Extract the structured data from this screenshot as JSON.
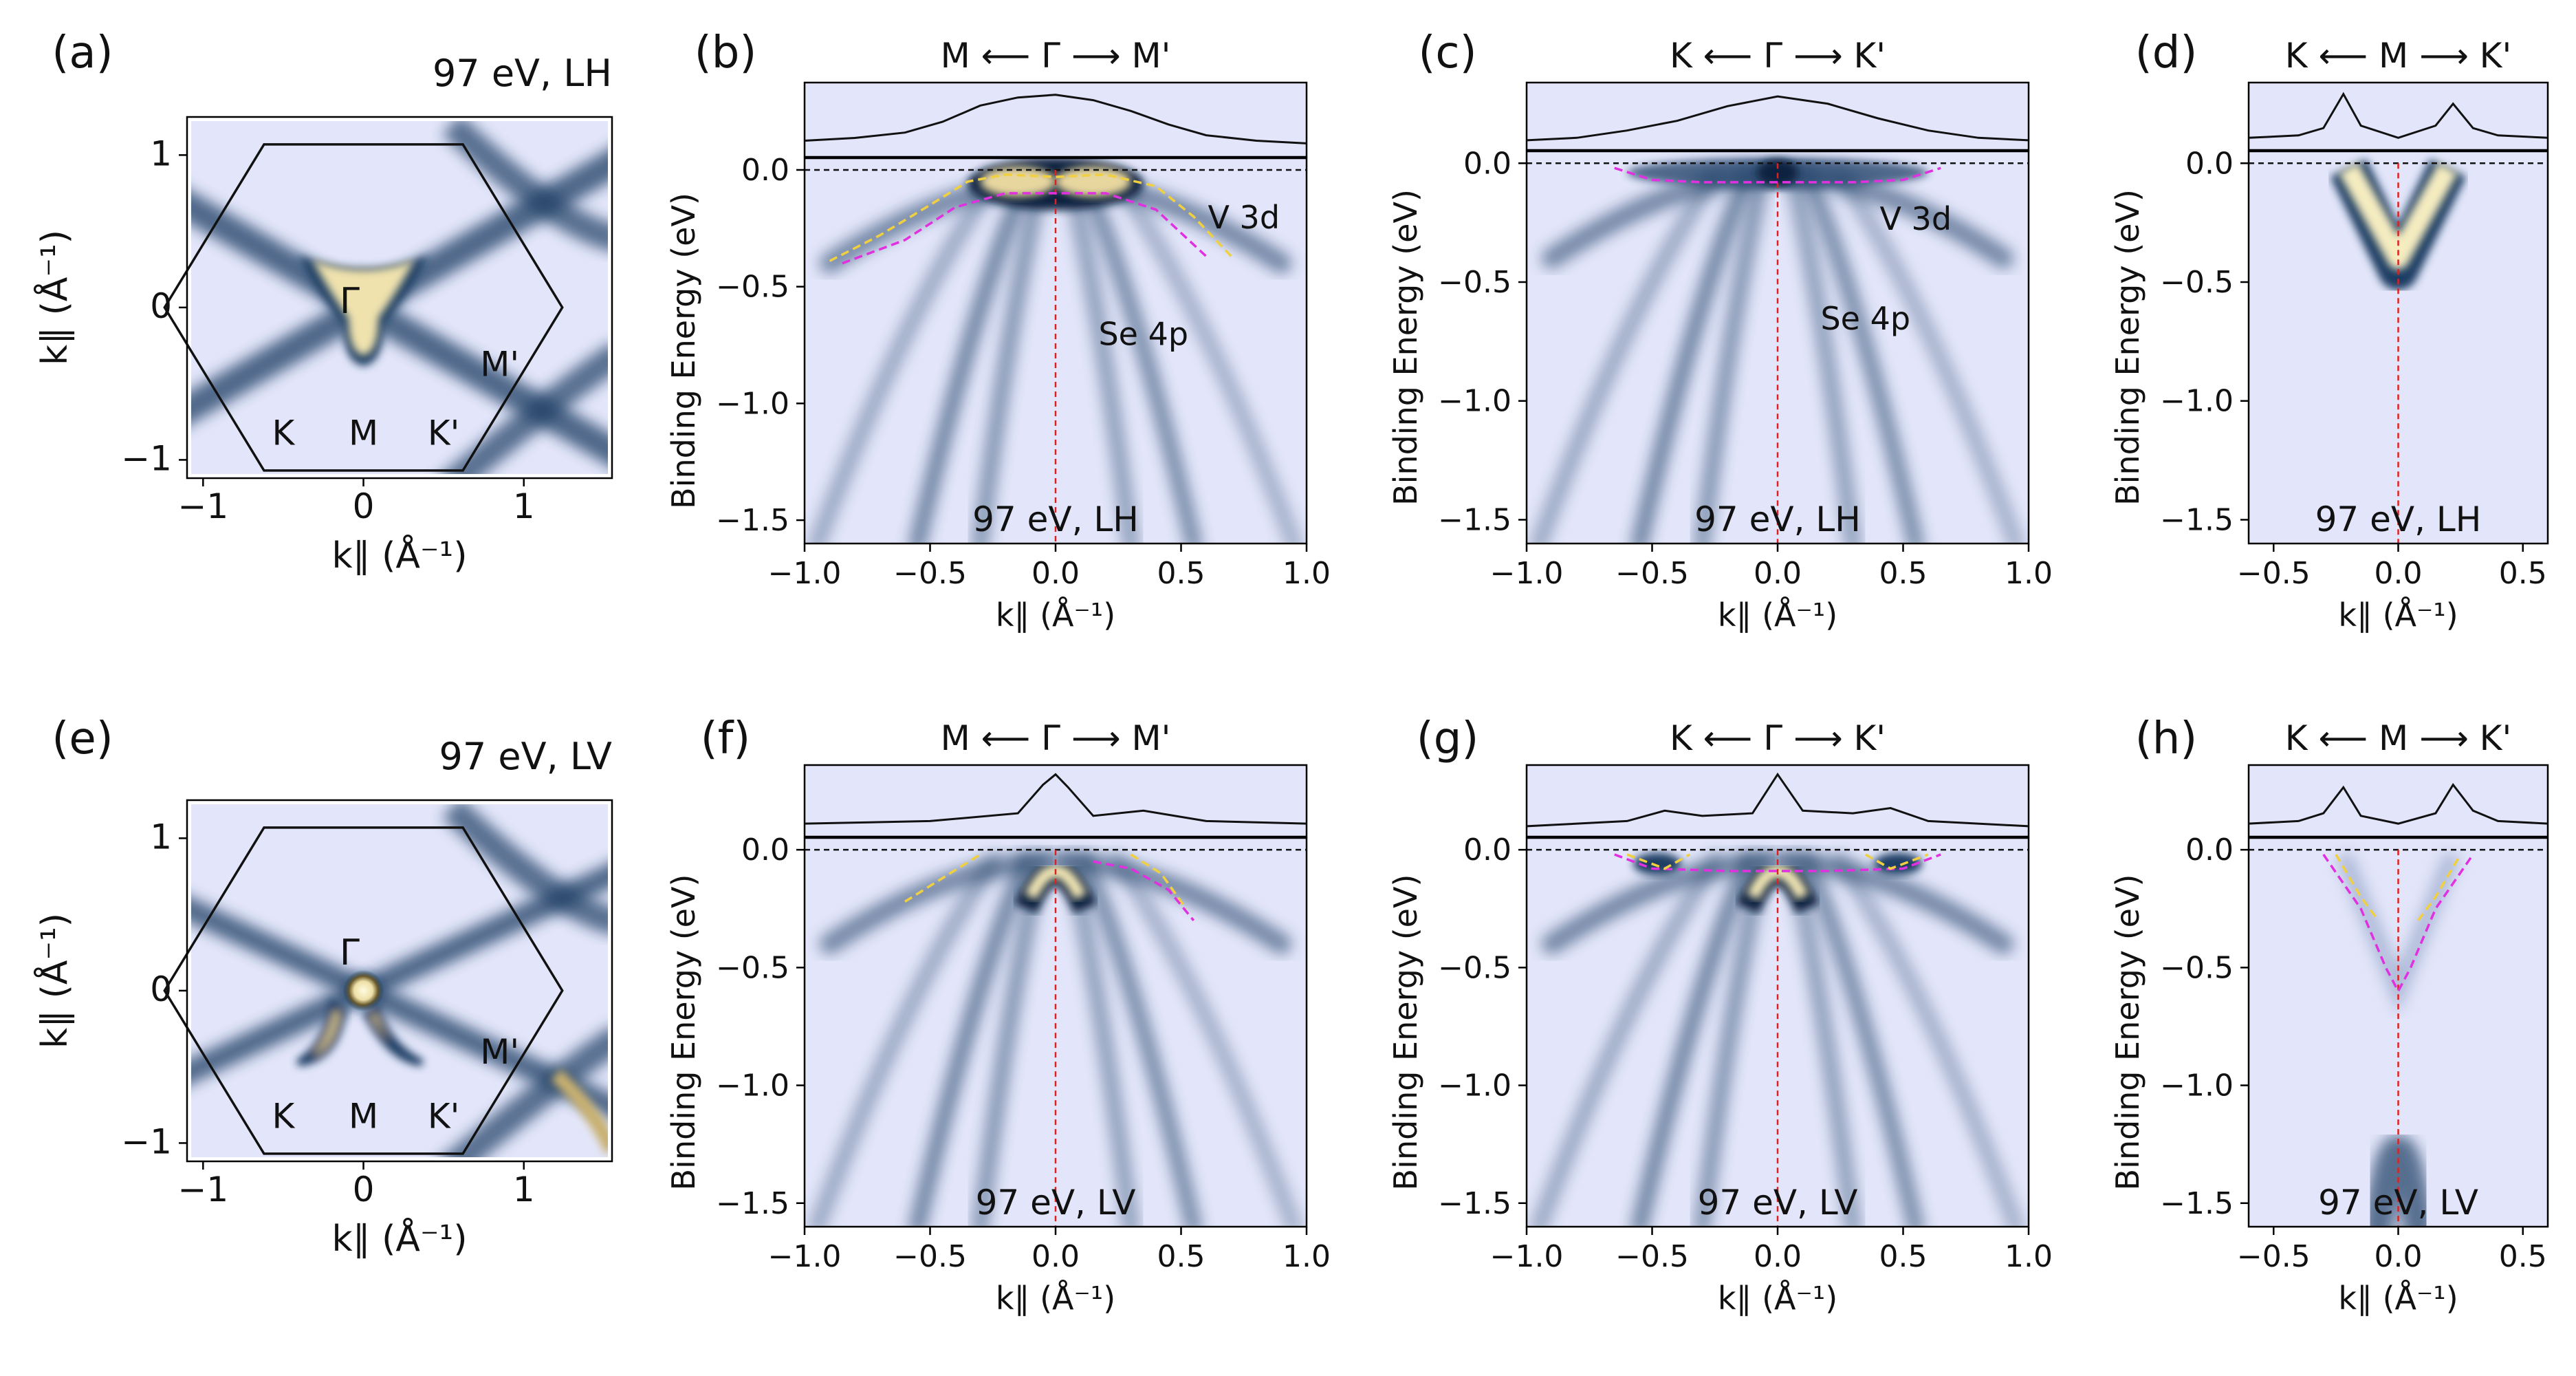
{
  "figure": {
    "colors": {
      "background": "#e3e6fa",
      "mapHigh": "#f6efc6",
      "mapMid": "#1c3d63",
      "guide": "#e02020",
      "dashYellow": "#f0d040",
      "dashMagenta": "#e030e0",
      "edcLine": "#111111"
    }
  },
  "chart_data": [
    {
      "panel": "(a)",
      "type": "heatmap",
      "title": "97 eV, LH",
      "xlabel": "k∥ (Å⁻¹)",
      "ylabel": "k∥ (Å⁻¹)",
      "xlim": [
        -1.1,
        1.55
      ],
      "ylim": [
        -1.12,
        1.25
      ],
      "xticks": [
        -1,
        0,
        1
      ],
      "yticks": [
        -1,
        0,
        1
      ],
      "xticklabels": [
        "−1",
        "0",
        "1"
      ],
      "yticklabels": [
        "−1",
        "0",
        "1"
      ],
      "points": [
        "Γ",
        "K",
        "M",
        "K'",
        "M'"
      ],
      "content": "Fermi surface map: bright trefoil pocket at Γ, dark spokes along Γ–M directions, hexagonal Brillouin zone"
    },
    {
      "panel": "(b)",
      "type": "heatmap",
      "cut": "M ⟵ Γ ⟶ M'",
      "xlabel": "k∥ (Å⁻¹)",
      "ylabel": "Binding Energy (eV)",
      "xlim": [
        -1.0,
        1.0
      ],
      "ylim": [
        -1.6,
        0.05
      ],
      "xticks": [
        -1.0,
        -0.5,
        0.0,
        0.5,
        1.0
      ],
      "xticklabels": [
        "−1.0",
        "−0.5",
        "0.0",
        "0.5",
        "1.0"
      ],
      "yticks": [
        0.0,
        -0.5,
        -1.0,
        -1.5
      ],
      "yticklabels": [
        "0.0",
        "−0.5",
        "−1.0",
        "−1.5"
      ],
      "annotations": [
        "V 3d",
        "Se 4p"
      ],
      "condition": "97 eV, LH",
      "edc": {
        "x": [
          -1.0,
          -0.8,
          -0.6,
          -0.45,
          -0.3,
          -0.15,
          0.0,
          0.15,
          0.3,
          0.45,
          0.6,
          0.8,
          1.0
        ],
        "y": [
          0.06,
          0.07,
          0.09,
          0.13,
          0.19,
          0.22,
          0.23,
          0.21,
          0.17,
          0.12,
          0.08,
          0.06,
          0.05
        ]
      },
      "dispersions": [
        {
          "name": "yellow",
          "x": [
            -0.9,
            -0.7,
            -0.5,
            -0.35,
            -0.2,
            0.0,
            0.2,
            0.4,
            0.55,
            0.7
          ],
          "y": [
            -0.39,
            -0.28,
            -0.15,
            -0.05,
            -0.02,
            -0.03,
            -0.02,
            -0.07,
            -0.2,
            -0.37
          ]
        },
        {
          "name": "magenta",
          "x": [
            -0.85,
            -0.6,
            -0.4,
            -0.2,
            0.0,
            0.2,
            0.4,
            0.6
          ],
          "y": [
            -0.4,
            -0.3,
            -0.16,
            -0.1,
            -0.1,
            -0.1,
            -0.17,
            -0.37
          ]
        }
      ]
    },
    {
      "panel": "(c)",
      "type": "heatmap",
      "cut": "K ⟵ Γ ⟶ K'",
      "xlabel": "k∥ (Å⁻¹)",
      "ylabel": "Binding Energy (eV)",
      "xlim": [
        -1.0,
        1.0
      ],
      "ylim": [
        -1.6,
        0.05
      ],
      "xticks": [
        -1.0,
        -0.5,
        0.0,
        0.5,
        1.0
      ],
      "xticklabels": [
        "−1.0",
        "−0.5",
        "0.0",
        "0.5",
        "1.0"
      ],
      "yticks": [
        0.0,
        -0.5,
        -1.0,
        -1.5
      ],
      "yticklabels": [
        "0.0",
        "−0.5",
        "−1.0",
        "−1.5"
      ],
      "annotations": [
        "V 3d",
        "Se 4p"
      ],
      "condition": "97 eV, LH",
      "edc": {
        "x": [
          -1.0,
          -0.8,
          -0.6,
          -0.4,
          -0.2,
          0.0,
          0.2,
          0.4,
          0.6,
          0.8,
          1.0
        ],
        "y": [
          0.04,
          0.05,
          0.08,
          0.12,
          0.18,
          0.22,
          0.19,
          0.13,
          0.08,
          0.05,
          0.04
        ]
      },
      "dispersions": [
        {
          "name": "magenta",
          "x": [
            -0.65,
            -0.5,
            -0.3,
            0.0,
            0.3,
            0.5,
            0.65
          ],
          "y": [
            -0.02,
            -0.07,
            -0.08,
            -0.08,
            -0.08,
            -0.07,
            -0.02
          ]
        }
      ]
    },
    {
      "panel": "(d)",
      "type": "heatmap",
      "cut": "K ⟵ M ⟶ K'",
      "xlabel": "k∥ (Å⁻¹)",
      "ylabel": "Binding Energy (eV)",
      "xlim": [
        -0.6,
        0.6
      ],
      "ylim": [
        -1.6,
        0.05
      ],
      "xticks": [
        -0.5,
        0.0,
        0.5
      ],
      "xticklabels": [
        "−0.5",
        "0.0",
        "0.5"
      ],
      "yticks": [
        0.0,
        -0.5,
        -1.0,
        -1.5
      ],
      "yticklabels": [
        "0.0",
        "−0.5",
        "−1.0",
        "−1.5"
      ],
      "condition": "97 eV, LH",
      "edc": {
        "x": [
          -0.6,
          -0.4,
          -0.3,
          -0.22,
          -0.15,
          0.0,
          0.15,
          0.22,
          0.3,
          0.4,
          0.6
        ],
        "y": [
          0.05,
          0.06,
          0.09,
          0.23,
          0.1,
          0.05,
          0.1,
          0.19,
          0.09,
          0.06,
          0.05
        ]
      }
    },
    {
      "panel": "(e)",
      "type": "heatmap",
      "title": "97 eV, LV",
      "xlabel": "k∥ (Å⁻¹)",
      "ylabel": "k∥ (Å⁻¹)",
      "xlim": [
        -1.1,
        1.55
      ],
      "ylim": [
        -1.12,
        1.25
      ],
      "xticks": [
        -1,
        0,
        1
      ],
      "yticks": [
        -1,
        0,
        1
      ],
      "xticklabels": [
        "−1",
        "0",
        "1"
      ],
      "yticklabels": [
        "−1",
        "0",
        "1"
      ],
      "points": [
        "Γ",
        "K",
        "M",
        "K'",
        "M'"
      ],
      "content": "Fermi surface map: small bright pocket at Γ, crescent pockets below Γ, dark spokes"
    },
    {
      "panel": "(f)",
      "type": "heatmap",
      "cut": "M ⟵ Γ ⟶ M'",
      "xlabel": "k∥ (Å⁻¹)",
      "ylabel": "Binding Energy (eV)",
      "xlim": [
        -1.0,
        1.0
      ],
      "ylim": [
        -1.6,
        0.05
      ],
      "xticks": [
        -1.0,
        -0.5,
        0.0,
        0.5,
        1.0
      ],
      "xticklabels": [
        "−1.0",
        "−0.5",
        "0.0",
        "0.5",
        "1.0"
      ],
      "yticks": [
        0.0,
        -0.5,
        -1.0,
        -1.5
      ],
      "yticklabels": [
        "0.0",
        "−0.5",
        "−1.0",
        "−1.5"
      ],
      "condition": "97 eV, LV",
      "edc": {
        "x": [
          -1.0,
          -0.5,
          -0.15,
          -0.05,
          0.0,
          0.05,
          0.15,
          0.35,
          0.6,
          1.0
        ],
        "y": [
          0.05,
          0.06,
          0.09,
          0.2,
          0.24,
          0.19,
          0.08,
          0.1,
          0.06,
          0.05
        ]
      },
      "dispersions": [
        {
          "name": "yellow",
          "x": [
            -0.6,
            -0.45,
            -0.3
          ],
          "y": [
            -0.22,
            -0.12,
            -0.02
          ]
        },
        {
          "name": "yellow",
          "x": [
            0.3,
            0.42,
            0.52
          ],
          "y": [
            -0.02,
            -0.1,
            -0.25
          ]
        },
        {
          "name": "magenta",
          "x": [
            0.15,
            0.3,
            0.45,
            0.55
          ],
          "y": [
            -0.05,
            -0.08,
            -0.17,
            -0.3
          ]
        }
      ]
    },
    {
      "panel": "(g)",
      "type": "heatmap",
      "cut": "K ⟵ Γ ⟶ K'",
      "xlabel": "k∥ (Å⁻¹)",
      "ylabel": "Binding Energy (eV)",
      "xlim": [
        -1.0,
        1.0
      ],
      "ylim": [
        -1.6,
        0.05
      ],
      "xticks": [
        -1.0,
        -0.5,
        0.0,
        0.5,
        1.0
      ],
      "xticklabels": [
        "−1.0",
        "−0.5",
        "0.0",
        "0.5",
        "1.0"
      ],
      "yticks": [
        0.0,
        -0.5,
        -1.0,
        -1.5
      ],
      "yticklabels": [
        "0.0",
        "−0.5",
        "−1.0",
        "−1.5"
      ],
      "condition": "97 eV, LV",
      "edc": {
        "x": [
          -1.0,
          -0.6,
          -0.45,
          -0.3,
          -0.1,
          0.0,
          0.1,
          0.3,
          0.45,
          0.6,
          1.0
        ],
        "y": [
          0.04,
          0.06,
          0.1,
          0.08,
          0.09,
          0.24,
          0.1,
          0.09,
          0.11,
          0.06,
          0.04
        ]
      },
      "dispersions": [
        {
          "name": "magenta",
          "x": [
            -0.65,
            -0.5,
            -0.2,
            0.0,
            0.2,
            0.5,
            0.65
          ],
          "y": [
            -0.02,
            -0.08,
            -0.09,
            -0.09,
            -0.09,
            -0.08,
            -0.02
          ]
        },
        {
          "name": "yellow",
          "x": [
            -0.6,
            -0.45,
            -0.35
          ],
          "y": [
            -0.02,
            -0.08,
            -0.02
          ]
        },
        {
          "name": "yellow",
          "x": [
            0.35,
            0.45,
            0.6
          ],
          "y": [
            -0.02,
            -0.08,
            -0.02
          ]
        }
      ]
    },
    {
      "panel": "(h)",
      "type": "heatmap",
      "cut": "K ⟵ M ⟶ K'",
      "xlabel": "k∥ (Å⁻¹)",
      "ylabel": "Binding Energy (eV)",
      "xlim": [
        -0.6,
        0.6
      ],
      "ylim": [
        -1.6,
        0.05
      ],
      "xticks": [
        -0.5,
        0.0,
        0.5
      ],
      "xticklabels": [
        "−0.5",
        "0.0",
        "0.5"
      ],
      "yticks": [
        0.0,
        -0.5,
        -1.0,
        -1.5
      ],
      "yticklabels": [
        "0.0",
        "−0.5",
        "−1.0",
        "−1.5"
      ],
      "condition": "97 eV, LV",
      "edc": {
        "x": [
          -0.6,
          -0.4,
          -0.3,
          -0.22,
          -0.15,
          0.0,
          0.15,
          0.22,
          0.3,
          0.4,
          0.6
        ],
        "y": [
          0.05,
          0.06,
          0.09,
          0.19,
          0.08,
          0.05,
          0.09,
          0.2,
          0.1,
          0.06,
          0.05
        ]
      },
      "dispersions": [
        {
          "name": "magenta",
          "x": [
            -0.3,
            -0.15,
            -0.05,
            0.0,
            0.05,
            0.15,
            0.3
          ],
          "y": [
            -0.02,
            -0.25,
            -0.5,
            -0.6,
            -0.5,
            -0.25,
            -0.02
          ]
        },
        {
          "name": "yellow",
          "x": [
            -0.25,
            -0.15,
            -0.08
          ],
          "y": [
            -0.02,
            -0.2,
            -0.3
          ]
        },
        {
          "name": "yellow",
          "x": [
            0.08,
            0.15,
            0.25
          ],
          "y": [
            -0.3,
            -0.2,
            -0.02
          ]
        }
      ]
    }
  ]
}
